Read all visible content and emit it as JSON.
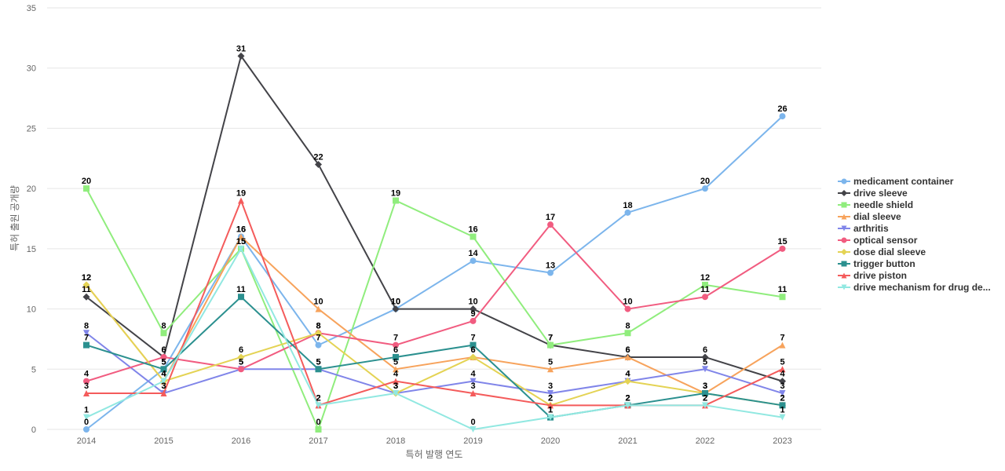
{
  "chart_data": {
    "type": "line",
    "title": "",
    "xlabel": "특허 발행 연도",
    "ylabel": "특허 출원 공개량",
    "x": [
      "2014",
      "2015",
      "2016",
      "2017",
      "2018",
      "2019",
      "2020",
      "2021",
      "2022",
      "2023"
    ],
    "ylim": [
      0,
      35
    ],
    "yticks": [
      0,
      5,
      10,
      15,
      20,
      25,
      30,
      35
    ],
    "grid": true,
    "legend_position": "right",
    "series": [
      {
        "name": "medicament container",
        "color": "#7cb5ec",
        "marker": "circle",
        "values": [
          0,
          5,
          16,
          7,
          10,
          14,
          13,
          18,
          20,
          26
        ]
      },
      {
        "name": "drive sleeve",
        "color": "#434348",
        "marker": "diamond",
        "values": [
          11,
          6,
          31,
          22,
          10,
          10,
          7,
          6,
          6,
          4
        ]
      },
      {
        "name": "needle shield",
        "color": "#90ed7d",
        "marker": "square",
        "values": [
          20,
          8,
          15,
          0,
          19,
          16,
          7,
          8,
          12,
          11
        ]
      },
      {
        "name": "dial sleeve",
        "color": "#f7a35c",
        "marker": "triangle",
        "values": [
          12,
          4,
          16,
          10,
          5,
          6,
          5,
          6,
          3,
          7
        ]
      },
      {
        "name": "arthritis",
        "color": "#8085e9",
        "marker": "triangle-down",
        "values": [
          8,
          3,
          5,
          5,
          3,
          4,
          3,
          4,
          5,
          3
        ]
      },
      {
        "name": "optical sensor",
        "color": "#f15c80",
        "marker": "circle",
        "values": [
          4,
          6,
          5,
          8,
          7,
          9,
          17,
          10,
          11,
          15
        ]
      },
      {
        "name": "dose dial sleeve",
        "color": "#e4d354",
        "marker": "diamond",
        "values": [
          12,
          4,
          6,
          8,
          3,
          6,
          2,
          4,
          3,
          2
        ]
      },
      {
        "name": "trigger button",
        "color": "#2b908f",
        "marker": "square",
        "values": [
          7,
          5,
          11,
          5,
          6,
          7,
          1,
          2,
          3,
          2
        ]
      },
      {
        "name": "drive piston",
        "color": "#f45b5b",
        "marker": "triangle",
        "values": [
          3,
          3,
          19,
          2,
          4,
          3,
          2,
          2,
          2,
          5
        ]
      },
      {
        "name": "drive mechanism for drug de...",
        "color": "#91e8e1",
        "marker": "triangle-down",
        "values": [
          1,
          4,
          15,
          2,
          3,
          0,
          1,
          2,
          2,
          1
        ]
      }
    ]
  }
}
